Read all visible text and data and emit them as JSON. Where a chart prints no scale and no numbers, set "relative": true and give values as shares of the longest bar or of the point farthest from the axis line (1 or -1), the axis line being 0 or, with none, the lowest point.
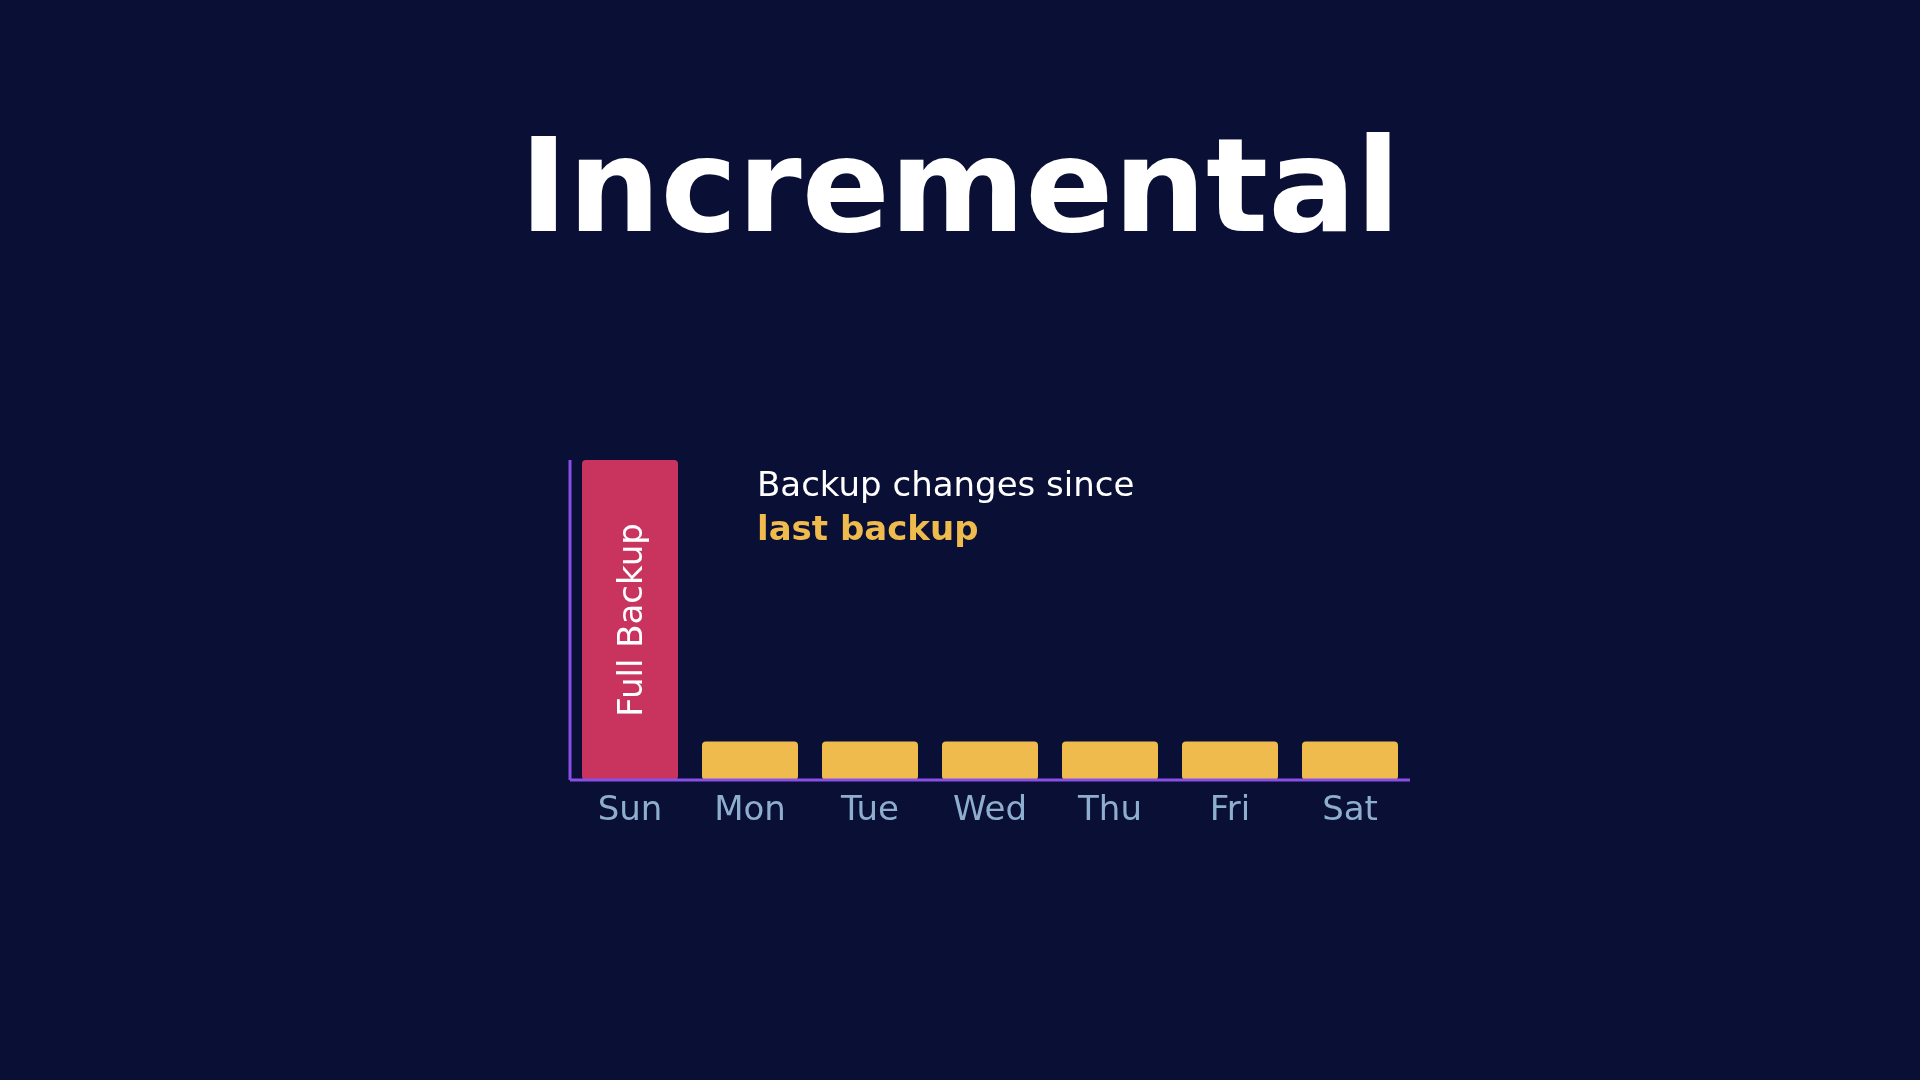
{
  "chart_data": {
    "type": "bar",
    "title": "Incremental",
    "relative": true,
    "categories": [
      "Sun",
      "Mon",
      "Tue",
      "Wed",
      "Thu",
      "Fri",
      "Sat"
    ],
    "values": [
      1,
      0.12,
      0.12,
      0.12,
      0.12,
      0.12,
      0.12
    ],
    "colors": [
      "#c9345f",
      "#efbb4c",
      "#efbb4c",
      "#efbb4c",
      "#efbb4c",
      "#efbb4c",
      "#efbb4c"
    ],
    "annotations": [
      "Full Backup",
      "Backup changes since",
      "last backup"
    ],
    "grid": false,
    "legend": false
  }
}
